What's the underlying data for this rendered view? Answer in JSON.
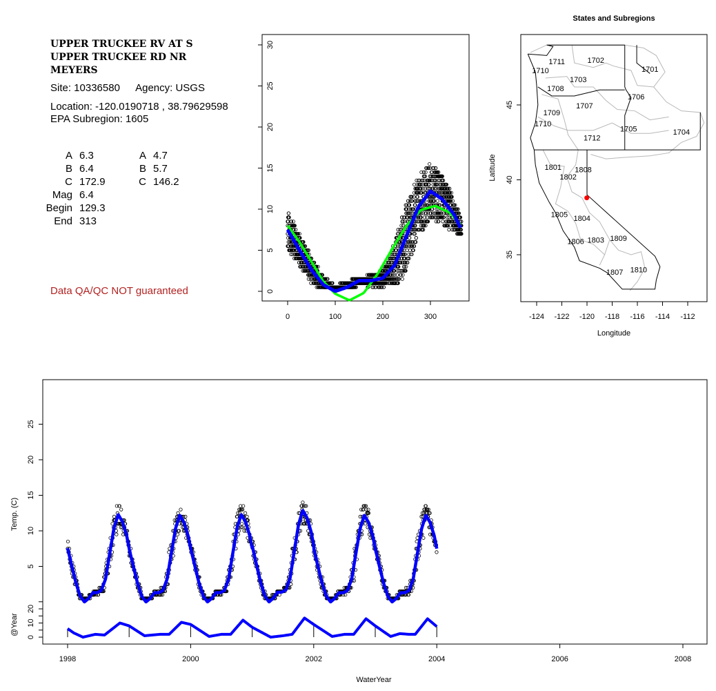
{
  "info": {
    "title_lines": [
      "UPPER TRUCKEE RV AT S",
      "UPPER TRUCKEE RD NR",
      "MEYERS"
    ],
    "site": "Site: 10336580",
    "agency": "Agency: USGS",
    "location": "Location: -120.0190718 , 38.79629598",
    "subregion": "EPA Subregion: 1605",
    "coefs_left": [
      {
        "label": "A",
        "value": "6.3"
      },
      {
        "label": "B",
        "value": "6.4"
      },
      {
        "label": "C",
        "value": "172.9"
      },
      {
        "label": "Mag",
        "value": "6.4"
      },
      {
        "label": "Begin",
        "value": "129.3"
      },
      {
        "label": "End",
        "value": "313"
      }
    ],
    "coefs_right": [
      {
        "label": "A",
        "value": "4.7"
      },
      {
        "label": "B",
        "value": "5.7"
      },
      {
        "label": "C",
        "value": "146.2"
      }
    ],
    "qa_note": "Data QA/QC NOT guaranteed",
    "qa_color": "#b22222"
  },
  "chart_data": [
    {
      "type": "scatter",
      "title": "",
      "xlabel": "",
      "ylabel": "",
      "xlim": [
        -5,
        380
      ],
      "ylim": [
        -1.5,
        31
      ],
      "xticks": [
        "0",
        "100",
        "200",
        "300"
      ],
      "yticks": [
        "0",
        "5",
        "10",
        "15",
        "20",
        "25",
        "30"
      ],
      "points_color": "#000000",
      "observed_range_by_day": {
        "day": [
          0,
          30,
          60,
          90,
          120,
          150,
          180,
          210,
          240,
          270,
          300,
          330,
          365
        ],
        "min": [
          4.5,
          2.5,
          0.5,
          0.5,
          0.5,
          0.5,
          0.5,
          0.5,
          1.5,
          6,
          8,
          7,
          7
        ],
        "max": [
          9.5,
          6.5,
          3.5,
          2,
          2,
          1.5,
          2,
          3.5,
          10.5,
          14.5,
          15.5,
          13.5,
          9.5
        ]
      },
      "series": [
        {
          "color": "#0000ff",
          "x": [
            0,
            25,
            50,
            75,
            100,
            125,
            150,
            175,
            200,
            225,
            250,
            275,
            300,
            325,
            350,
            365
          ],
          "y": [
            7.5,
            5,
            2.6,
            0.8,
            0,
            0.5,
            1.3,
            1.3,
            1.6,
            3.2,
            6.8,
            10.3,
            12.2,
            11.2,
            9.3,
            7.5
          ]
        },
        {
          "color": "#00ff00",
          "x": [
            0,
            25,
            50,
            75,
            100,
            130,
            160,
            190,
            220,
            250,
            280,
            310,
            340,
            365
          ],
          "y": [
            8,
            6,
            3.6,
            1.2,
            -0.3,
            -1.1,
            -0.2,
            2.2,
            5.2,
            8,
            9.9,
            10.4,
            9.6,
            8
          ]
        }
      ]
    },
    {
      "type": "map",
      "title": "States and Subregions",
      "xlabel": "Longitude",
      "ylabel": "Latitude",
      "xlim": [
        -125.2,
        -110.5
      ],
      "ylim": [
        32.4,
        50.2
      ],
      "xticks": [
        "-124",
        "-122",
        "-120",
        "-118",
        "-116",
        "-114",
        "-112"
      ],
      "yticks": [
        "35",
        "40",
        "45"
      ],
      "site": {
        "lon": -120.0190718,
        "lat": 38.79629598,
        "color": "#ff0000"
      },
      "subregion_labels": [
        {
          "text": "1702",
          "lon": -119.3,
          "lat": 48.0
        },
        {
          "text": "1701",
          "lon": -115.0,
          "lat": 47.4
        },
        {
          "text": "1711",
          "lon": -122.4,
          "lat": 47.9
        },
        {
          "text": "1710",
          "lon": -123.7,
          "lat": 47.3
        },
        {
          "text": "1703",
          "lon": -120.7,
          "lat": 46.7
        },
        {
          "text": "1708",
          "lon": -122.5,
          "lat": 46.1
        },
        {
          "text": "1706",
          "lon": -116.1,
          "lat": 45.55
        },
        {
          "text": "1707",
          "lon": -120.2,
          "lat": 44.95
        },
        {
          "text": "1709",
          "lon": -122.8,
          "lat": 44.5
        },
        {
          "text": "1710",
          "lon": -123.5,
          "lat": 43.75
        },
        {
          "text": "1705",
          "lon": -116.7,
          "lat": 43.4
        },
        {
          "text": "1704",
          "lon": -112.5,
          "lat": 43.2
        },
        {
          "text": "1712",
          "lon": -119.6,
          "lat": 42.8
        },
        {
          "text": "1801",
          "lon": -122.7,
          "lat": 40.85
        },
        {
          "text": "1808",
          "lon": -120.3,
          "lat": 40.7
        },
        {
          "text": "1802",
          "lon": -121.5,
          "lat": 40.2
        },
        {
          "text": "1805",
          "lon": -122.2,
          "lat": 37.7
        },
        {
          "text": "1804",
          "lon": -120.4,
          "lat": 37.45
        },
        {
          "text": "1806",
          "lon": -120.9,
          "lat": 35.9
        },
        {
          "text": "1803",
          "lon": -119.3,
          "lat": 36.0
        },
        {
          "text": "1809",
          "lon": -117.5,
          "lat": 36.1
        },
        {
          "text": "1807",
          "lon": -117.8,
          "lat": 33.85
        },
        {
          "text": "1810",
          "lon": -115.9,
          "lat": 34.0
        }
      ]
    },
    {
      "type": "line",
      "title": "",
      "xlabel": "WaterYear",
      "ylabel": "Temp. (C)",
      "ylabel_lower": "@Year",
      "xlim": [
        1997.6,
        2008.4
      ],
      "ylim": [
        -6,
        30
      ],
      "xticks": [
        "1998",
        "2000",
        "2002",
        "2004",
        "2006",
        "2008"
      ],
      "yticks": [
        "5",
        "10",
        "15",
        "20",
        "25"
      ],
      "yticks_lower": [
        "0",
        "10",
        "20"
      ],
      "fit_color": "#0000ff",
      "yearly_peak_temp": {
        "year": [
          1998,
          1999,
          2000,
          2001,
          2002,
          2003
        ],
        "peak": [
          12.3,
          12.2,
          12.3,
          12.9,
          12.2,
          12.2
        ]
      },
      "lower_series": {
        "x": [
          1998.0,
          1998.1,
          1998.25,
          1998.45,
          1998.6,
          1998.85,
          1999.0,
          1999.25,
          1999.5,
          1999.65,
          1999.85,
          2000.0,
          2000.3,
          2000.5,
          2000.65,
          2000.85,
          2001.0,
          2001.3,
          2001.5,
          2001.65,
          2001.85,
          2002.0,
          2002.3,
          2002.5,
          2002.65,
          2002.85,
          2003.0,
          2003.25,
          2003.4,
          2003.55,
          2003.65,
          2003.85,
          2004.0
        ],
        "y": [
          6,
          3,
          0,
          2,
          1.5,
          10,
          8,
          1,
          2,
          2,
          10.5,
          9,
          0.5,
          2,
          2,
          12,
          7,
          0,
          1,
          2,
          13.5,
          9,
          0.5,
          2,
          2,
          13,
          8,
          0.5,
          2.5,
          2,
          2,
          13,
          7.5
        ]
      }
    }
  ]
}
